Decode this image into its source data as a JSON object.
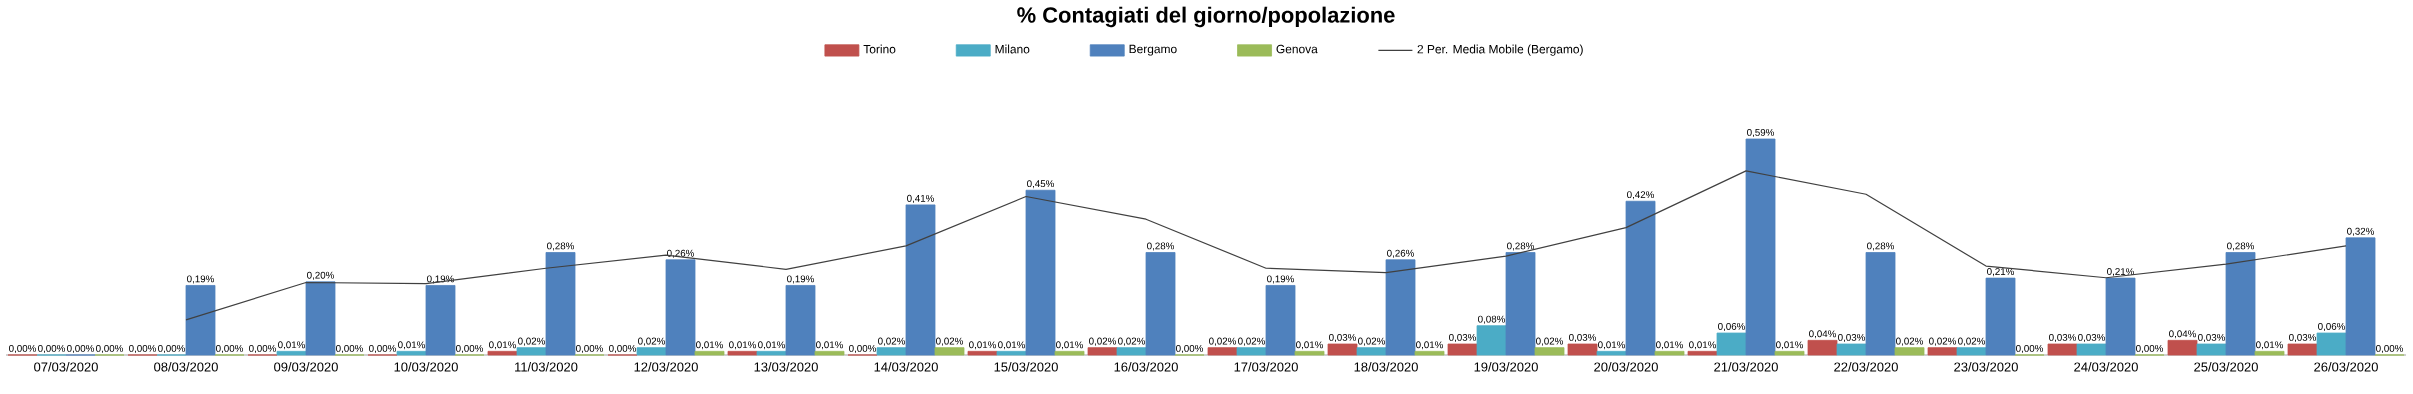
{
  "chart_data": {
    "type": "bar",
    "title": "% Contagiati del giorno/popolazione",
    "categories": [
      "07/03/2020",
      "08/03/2020",
      "09/03/2020",
      "10/03/2020",
      "11/03/2020",
      "12/03/2020",
      "13/03/2020",
      "14/03/2020",
      "15/03/2020",
      "16/03/2020",
      "17/03/2020",
      "18/03/2020",
      "19/03/2020",
      "20/03/2020",
      "21/03/2020",
      "22/03/2020",
      "23/03/2020",
      "24/03/2020",
      "25/03/2020",
      "26/03/2020"
    ],
    "series": [
      {
        "name": "Torino",
        "color": "#c0504d",
        "values": [
          0,
          0,
          0,
          0,
          0.01,
          0,
          0.01,
          0,
          0.01,
          0.02,
          0.02,
          0.03,
          0.03,
          0.03,
          0.01,
          0.04,
          0.02,
          0.03,
          0.04,
          0.03
        ],
        "value_labels": [
          "0,00%",
          "0,00%",
          "0,00%",
          "0,00%",
          "0,01%",
          "0,00%",
          "0,01%",
          "0,00%",
          "0,01%",
          "0,02%",
          "0,02%",
          "0,03%",
          "0,03%",
          "0,03%",
          "0,01%",
          "0,04%",
          "0,02%",
          "0,03%",
          "0,04%",
          "0,03%"
        ]
      },
      {
        "name": "Milano",
        "color": "#4bacc6",
        "values": [
          0,
          0,
          0.01,
          0.01,
          0.02,
          0.02,
          0.01,
          0.02,
          0.01,
          0.02,
          0.02,
          0.02,
          0.08,
          0.01,
          0.06,
          0.03,
          0.02,
          0.03,
          0.03,
          0.06
        ],
        "value_labels": [
          "0,00%",
          "0,00%",
          "0,01%",
          "0,01%",
          "0,02%",
          "0,02%",
          "0,01%",
          "0,02%",
          "0,01%",
          "0,02%",
          "0,02%",
          "0,02%",
          "0,08%",
          "0,01%",
          "0,06%",
          "0,03%",
          "0,02%",
          "0,03%",
          "0,03%",
          "0,06%"
        ]
      },
      {
        "name": "Bergamo",
        "color": "#4f81bd",
        "values": [
          0,
          0.19,
          0.2,
          0.19,
          0.28,
          0.26,
          0.19,
          0.41,
          0.45,
          0.28,
          0.19,
          0.26,
          0.28,
          0.42,
          0.59,
          0.28,
          0.21,
          0.21,
          0.28,
          0.32
        ],
        "value_labels": [
          "0,00%",
          "0,19%",
          "0,20%",
          "0,19%",
          "0,28%",
          "0,26%",
          "0,19%",
          "0,41%",
          "0,45%",
          "0,28%",
          "0,19%",
          "0,26%",
          "0,28%",
          "0,42%",
          "0,59%",
          "0,28%",
          "0,21%",
          "0,21%",
          "0,28%",
          "0,32%"
        ]
      },
      {
        "name": "Genova",
        "color": "#9bbb59",
        "values": [
          0,
          0,
          0,
          0,
          0,
          0.01,
          0.01,
          0.02,
          0.01,
          0,
          0.01,
          0.01,
          0.02,
          0.01,
          0.01,
          0.02,
          0,
          0,
          0.01,
          0
        ],
        "value_labels": [
          "0,00%",
          "0,00%",
          "0,00%",
          "0,00%",
          "0,00%",
          "0,01%",
          "0,01%",
          "0,02%",
          "0,01%",
          "0,00%",
          "0,01%",
          "0,01%",
          "0,02%",
          "0,01%",
          "0,01%",
          "0,02%",
          "0,00%",
          "0,00%",
          "0,01%",
          "0,00%"
        ]
      },
      {
        "name": "2 Per. Media Mobile (Bergamo)",
        "type": "line",
        "color": "#404040",
        "values": [
          null,
          0.096,
          0.198,
          0.195,
          0.237,
          0.273,
          0.234,
          0.298,
          0.433,
          0.371,
          0.237,
          0.225,
          0.27,
          0.348,
          0.503,
          0.439,
          0.243,
          0.211,
          0.248,
          0.298
        ]
      }
    ],
    "legend": "top",
    "tick_labels": "x"
  }
}
